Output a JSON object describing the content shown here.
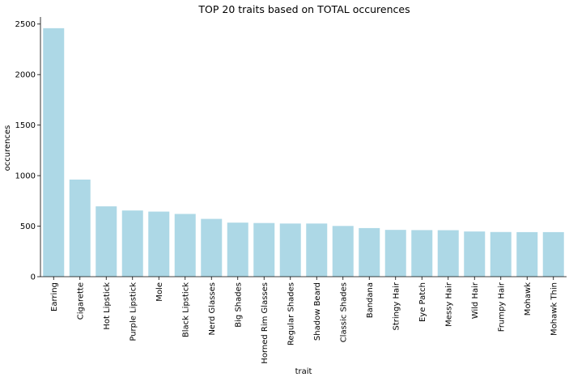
{
  "chart_data": {
    "type": "bar",
    "title": "TOP 20 traits based on TOTAL occurences",
    "xlabel": "trait",
    "ylabel": "occurences",
    "ylim": [
      0,
      2570
    ],
    "yticks": [
      0,
      500,
      1000,
      1500,
      2000,
      2500
    ],
    "grid": false,
    "bar_color": "#add8e6",
    "categories": [
      "Earring",
      "Cigarette",
      "Hot Lipstick",
      "Purple Lipstick",
      "Mole",
      "Black Lipstick",
      "Nerd Glasses",
      "Big Shades",
      "Horned Rim Glasses",
      "Regular Shades",
      "Shadow Beard",
      "Classic Shades",
      "Bandana",
      "Stringy Hair",
      "Eye Patch",
      "Messy Hair",
      "Wild Hair",
      "Frumpy Hair",
      "Mohawk",
      "Mohawk Thin"
    ],
    "values": [
      2459,
      961,
      696,
      655,
      644,
      621,
      572,
      535,
      531,
      526,
      526,
      502,
      481,
      463,
      461,
      460,
      447,
      442,
      441,
      441
    ]
  }
}
